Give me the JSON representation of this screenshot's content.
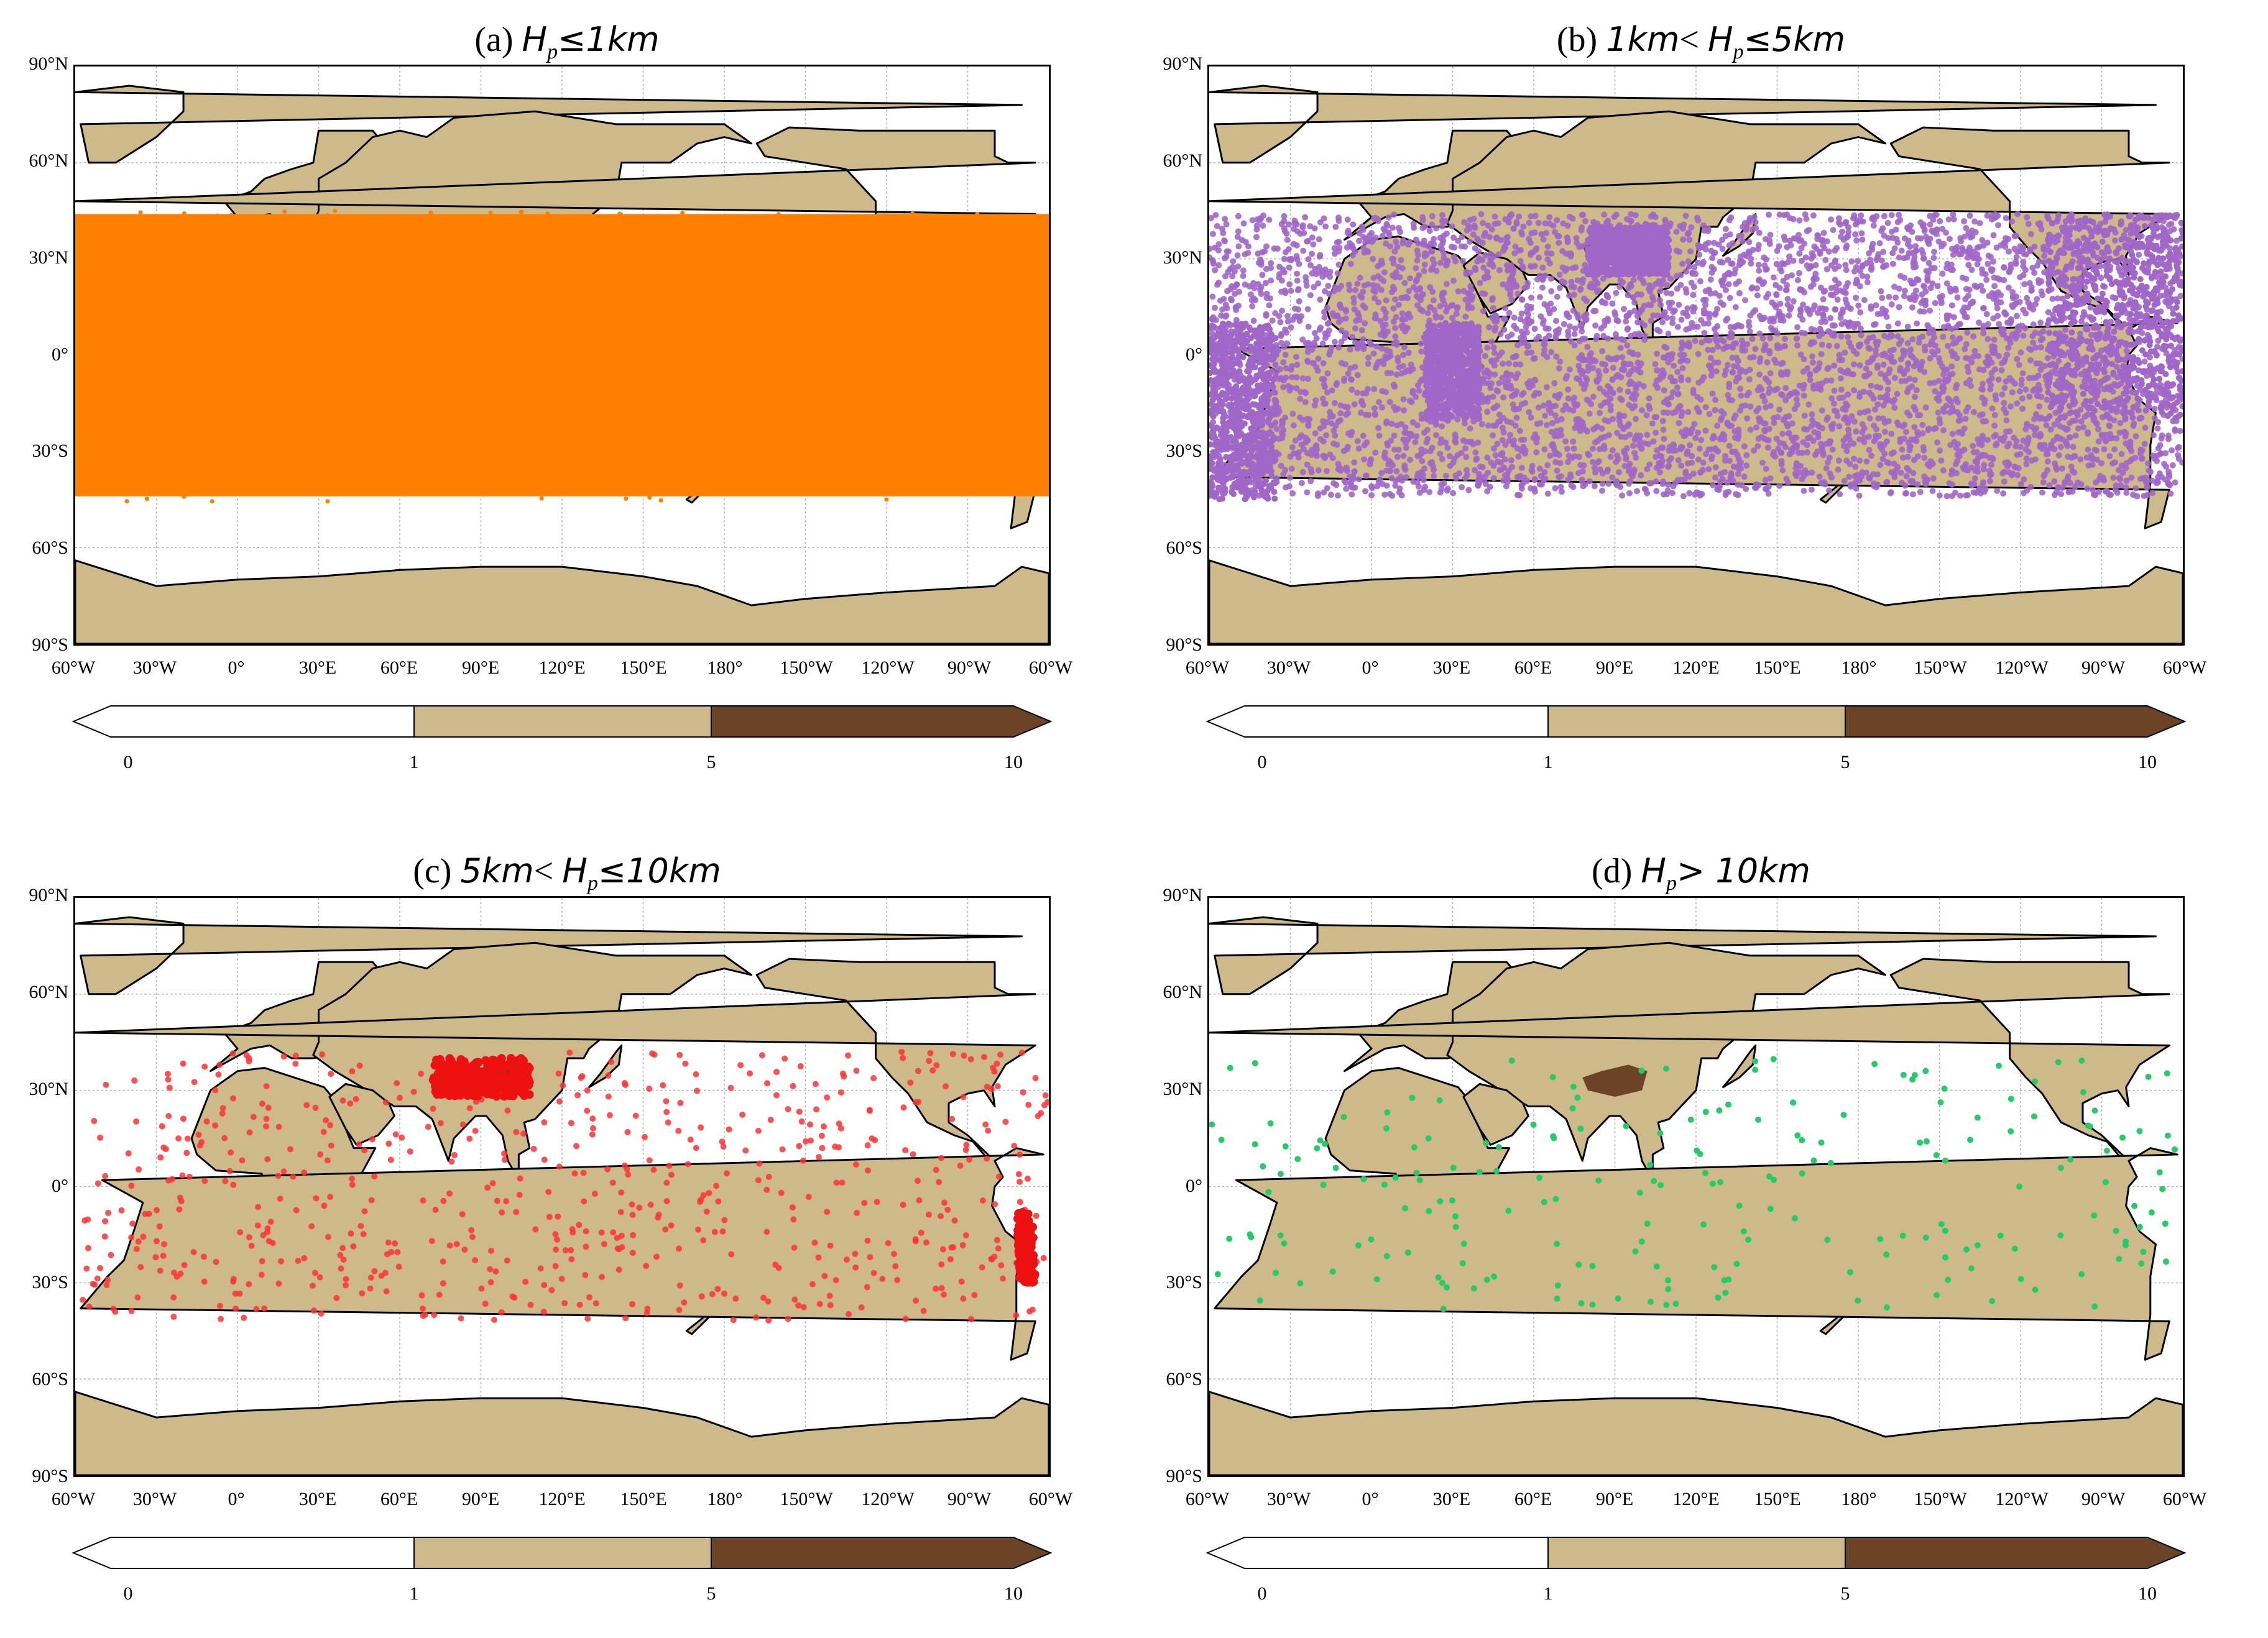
{
  "panels": [
    {
      "id": "a",
      "prefix": "(a) ",
      "title_parts": [
        {
          "t": "H",
          "it": true
        },
        {
          "t": "p",
          "sub": true
        },
        {
          "t": "≤1km",
          "it": true
        }
      ],
      "point_color": "#ff8000",
      "distribution": "dense band over the tropics and subtropics, nearly continuous coverage"
    },
    {
      "id": "b",
      "prefix": "(b) ",
      "title_parts": [
        {
          "t": "1km",
          "it": true
        },
        {
          "t": "< ",
          "it": false
        },
        {
          "t": "H",
          "it": true
        },
        {
          "t": "p",
          "sub": true
        },
        {
          "t": "≤5km",
          "it": true
        }
      ],
      "point_color": "#a066c8",
      "distribution": "moderately dense scattered band over the tropics and subtropics"
    },
    {
      "id": "c",
      "prefix": "(c) ",
      "title_parts": [
        {
          "t": "5km",
          "it": true
        },
        {
          "t": "< ",
          "it": false
        },
        {
          "t": "H",
          "it": true
        },
        {
          "t": "p",
          "sub": true
        },
        {
          "t": "≤10km",
          "it": true
        }
      ],
      "point_color": "#ff3333",
      "distribution": "sparse points with clusters over the Tibetan Plateau and the Andes"
    },
    {
      "id": "d",
      "prefix": "(d) ",
      "title_parts": [
        {
          "t": "H",
          "it": true
        },
        {
          "t": "p",
          "sub": true
        },
        {
          "t": "> 10km",
          "it": true
        }
      ],
      "point_color": "#22cc66",
      "distribution": "very sparse scattered points"
    }
  ],
  "lat_labels": [
    "90°N",
    "60°N",
    "30°N",
    "0°",
    "30°S",
    "60°S",
    "90°S"
  ],
  "lon_labels": [
    "60°W",
    "30°W",
    "0°",
    "30°E",
    "60°E",
    "90°E",
    "120°E",
    "150°E",
    "180°",
    "150°W",
    "120°W",
    "90°W",
    "60°W"
  ],
  "colorbar": {
    "ticks": [
      "0",
      "1",
      "5",
      "10"
    ],
    "colors": [
      "#ffffff",
      "#cdb98a",
      "#6b4428"
    ],
    "extend": "max"
  },
  "colors": {
    "land": "#cdb98a",
    "high_land": "#6b4428",
    "coast": "#000000",
    "grid": "#aaaaaa"
  }
}
